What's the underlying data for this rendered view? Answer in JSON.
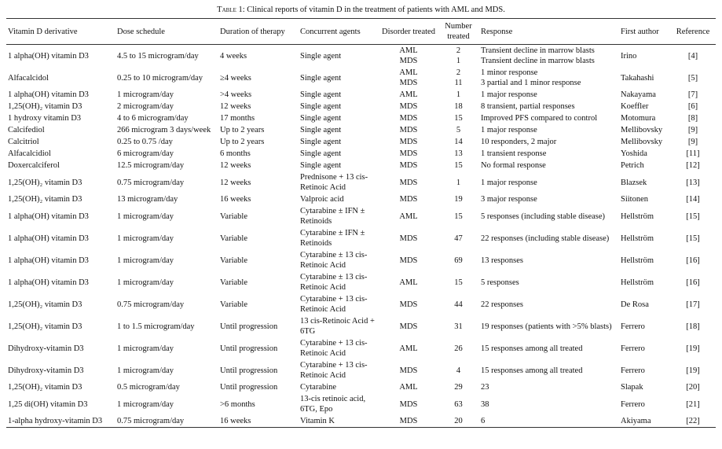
{
  "header": {
    "label": "Table 1",
    "title": ": Clinical reports of vitamin D in the treatment of patients with AML and MDS."
  },
  "table": {
    "columns": [
      "Vitamin D derivative",
      "Dose schedule",
      "Duration of therapy",
      "Concurrent agents",
      "Disorder treated",
      "Number treated",
      "Response",
      "First author",
      "Reference"
    ],
    "rows": [
      [
        "1 alpha(OH) vitamin D3",
        "4.5 to 15 microgram/day",
        "4 weeks",
        "Single agent",
        [
          "AML",
          "MDS"
        ],
        [
          "2",
          "1"
        ],
        [
          "Transient decline in marrow blasts",
          "Transient decline in marrow blasts"
        ],
        "Irino",
        "[4]"
      ],
      [
        "Alfacalcidol",
        "0.25 to 10 microgram/day",
        "≥4 weeks",
        "Single agent",
        [
          "AML",
          "MDS"
        ],
        [
          "2",
          "11"
        ],
        [
          "1 minor response",
          "3 partial and 1 minor response"
        ],
        "Takahashi",
        "[5]"
      ],
      [
        "1 alpha(OH) vitamin D3",
        "1 microgram/day",
        ">4 weeks",
        "Single agent",
        "AML",
        "1",
        "1 major response",
        "Nakayama",
        "[7]"
      ],
      [
        "1,25(OH)₂ vitamin D3",
        "2 microgram/day",
        "12 weeks",
        "Single agent",
        "MDS",
        "18",
        "8 transient, partial responses",
        "Koeffler",
        "[6]"
      ],
      [
        "1 hydroxy vitamin D3",
        "4 to 6 microgram/day",
        "17 months",
        "Single agent",
        "MDS",
        "15",
        "Improved PFS compared to control",
        "Motomura",
        "[8]"
      ],
      [
        "Calcifediol",
        "266 microgram 3 days/week",
        "Up to 2 years",
        "Single agent",
        "MDS",
        "5",
        "1 major response",
        "Mellibovsky",
        "[9]"
      ],
      [
        "Calcitriol",
        "0.25 to 0.75 /day",
        "Up to 2 years",
        "Single agent",
        "MDS",
        "14",
        "10 responders, 2 major",
        "Mellibovsky",
        "[9]"
      ],
      [
        "Alfacalcidiol",
        "6 microgram/day",
        "6 months",
        "Single agent",
        "MDS",
        "13",
        "1 transient response",
        "Yoshida",
        "[11]"
      ],
      [
        "Doxercalciferol",
        "12.5 microgram/day",
        "12 weeks",
        "Single agent",
        "MDS",
        "15",
        "No formal response",
        "Petrich",
        "[12]"
      ],
      [
        "1,25(OH)₂ vitamin D3",
        "0.75 microgram/day",
        "12 weeks",
        "Prednisone + 13 cis-Retinoic Acid",
        "MDS",
        "1",
        "1 major response",
        "Blazsek",
        "[13]"
      ],
      [
        "1,25(OH)₂ vitamin D3",
        "13 microgram/day",
        "16 weeks",
        "Valproic acid",
        "MDS",
        "19",
        "3 major response",
        "Siitonen",
        "[14]"
      ],
      [
        "1 alpha(OH) vitamin D3",
        "1 microgram/day",
        "Variable",
        "Cytarabine ± IFN ± Retinoids",
        "AML",
        "15",
        "5 responses (including stable disease)",
        "Hellström",
        "[15]"
      ],
      [
        "1 alpha(OH) vitamin D3",
        "1 microgram/day",
        "Variable",
        "Cytarabine ± IFN ± Retinoids",
        "MDS",
        "47",
        "22 responses (including stable disease)",
        "Hellström",
        "[15]"
      ],
      [
        "1 alpha(OH) vitamin D3",
        "1 microgram/day",
        "Variable",
        "Cytarabine ± 13 cis-Retinoic Acid",
        "MDS",
        "69",
        "13 responses",
        "Hellström",
        "[16]"
      ],
      [
        "1 alpha(OH) vitamin D3",
        "1 microgram/day",
        "Variable",
        "Cytarabine ± 13 cis-Retinoic Acid",
        "AML",
        "15",
        "5 responses",
        "Hellström",
        "[16]"
      ],
      [
        "1,25(OH)₂ vitamin D3",
        "0.75 microgram/day",
        "Variable",
        "Cytarabine + 13 cis-Retinoic Acid",
        "MDS",
        "44",
        "22 responses",
        "De Rosa",
        "[17]"
      ],
      [
        "1,25(OH)₂ vitamin D3",
        "1 to 1.5 microgram/day",
        "Until progression",
        "13 cis-Retinoic Acid + 6TG",
        "MDS",
        "31",
        "19 responses (patients with >5% blasts)",
        "Ferrero",
        "[18]"
      ],
      [
        "Dihydroxy-vitamin D3",
        "1 microgram/day",
        "Until progression",
        "Cytarabine + 13 cis-Retinoic Acid",
        "AML",
        "26",
        "15 responses among all treated",
        "Ferrero",
        "[19]"
      ],
      [
        "Dihydroxy-vitamin D3",
        "1 microgram/day",
        "Until progression",
        "Cytarabine + 13 cis-Retinoic Acid",
        "MDS",
        "4",
        "15 responses among all treated",
        "Ferrero",
        "[19]"
      ],
      [
        "1,25(OH)₂ vitamin D3",
        "0.5 microgram/day",
        "Until progression",
        "Cytarabine",
        "AML",
        "29",
        "23",
        "Slapak",
        "[20]"
      ],
      [
        "1,25 di(OH) vitamin D3",
        "1 microgram/day",
        ">6 months",
        "13-cis retinoic acid, 6TG, Epo",
        "MDS",
        "63",
        "38",
        "Ferrero",
        "[21]"
      ],
      [
        "1-alpha hydroxy-vitamin D3",
        "0.75 microgram/day",
        "16 weeks",
        "Vitamin K",
        "MDS",
        "20",
        "6",
        "Akiyama",
        "[22]"
      ]
    ]
  }
}
